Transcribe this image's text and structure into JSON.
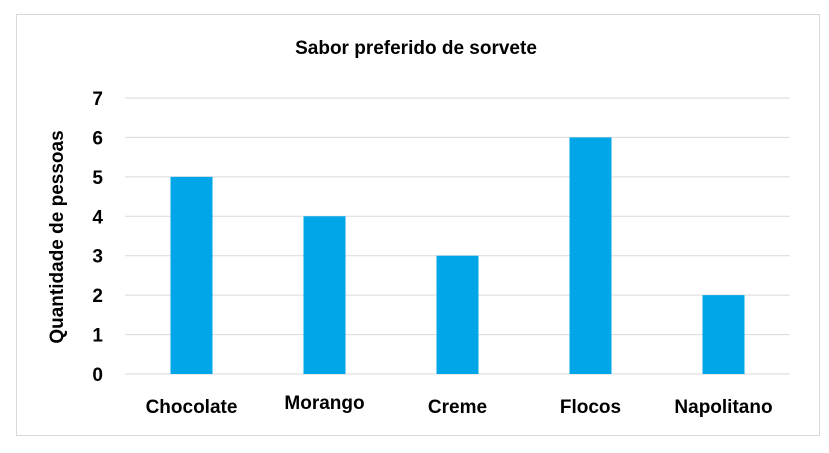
{
  "chart_data": {
    "type": "bar",
    "title": "Sabor preferido de sorvete",
    "xlabel": "",
    "ylabel": "Quantidade de pessoas",
    "categories": [
      "Chocolate",
      "Morango",
      "Creme",
      "Flocos",
      "Napolitano"
    ],
    "values": [
      5,
      4,
      3,
      6,
      2
    ],
    "ylim": [
      0,
      7
    ],
    "yticks": [
      0,
      1,
      2,
      3,
      4,
      5,
      6,
      7
    ],
    "grid": true,
    "legend": "none",
    "bar_color": "#00a6e8"
  }
}
